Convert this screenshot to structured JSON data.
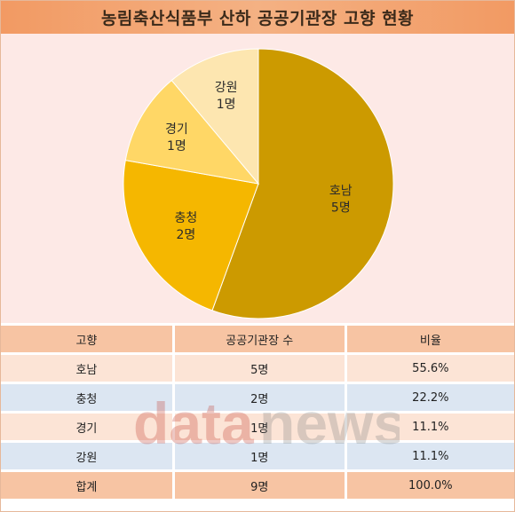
{
  "title": "농림축산식품부 산하 공공기관장 고향 현황",
  "chart_data": {
    "type": "pie",
    "title": "농림축산식품부 산하 공공기관장 고향 현황",
    "slices": [
      {
        "label": "호남",
        "value_label": "5명",
        "value": 5,
        "color": "#cc9a00"
      },
      {
        "label": "충청",
        "value_label": "2명",
        "value": 2,
        "color": "#f5b700"
      },
      {
        "label": "경기",
        "value_label": "1명",
        "value": 1,
        "color": "#ffd766"
      },
      {
        "label": "강원",
        "value_label": "1명",
        "value": 1,
        "color": "#fde6b0"
      }
    ]
  },
  "table": {
    "headers": [
      "고향",
      "공공기관장 수",
      "비율"
    ],
    "rows": [
      [
        "호남",
        "5명",
        "55.6%"
      ],
      [
        "충청",
        "2명",
        "22.2%"
      ],
      [
        "경기",
        "1명",
        "11.1%"
      ],
      [
        "강원",
        "1명",
        "11.1%"
      ],
      [
        "합계",
        "9명",
        "100.0%"
      ]
    ]
  },
  "watermark": {
    "text_a": "data",
    "text_b": "news"
  }
}
